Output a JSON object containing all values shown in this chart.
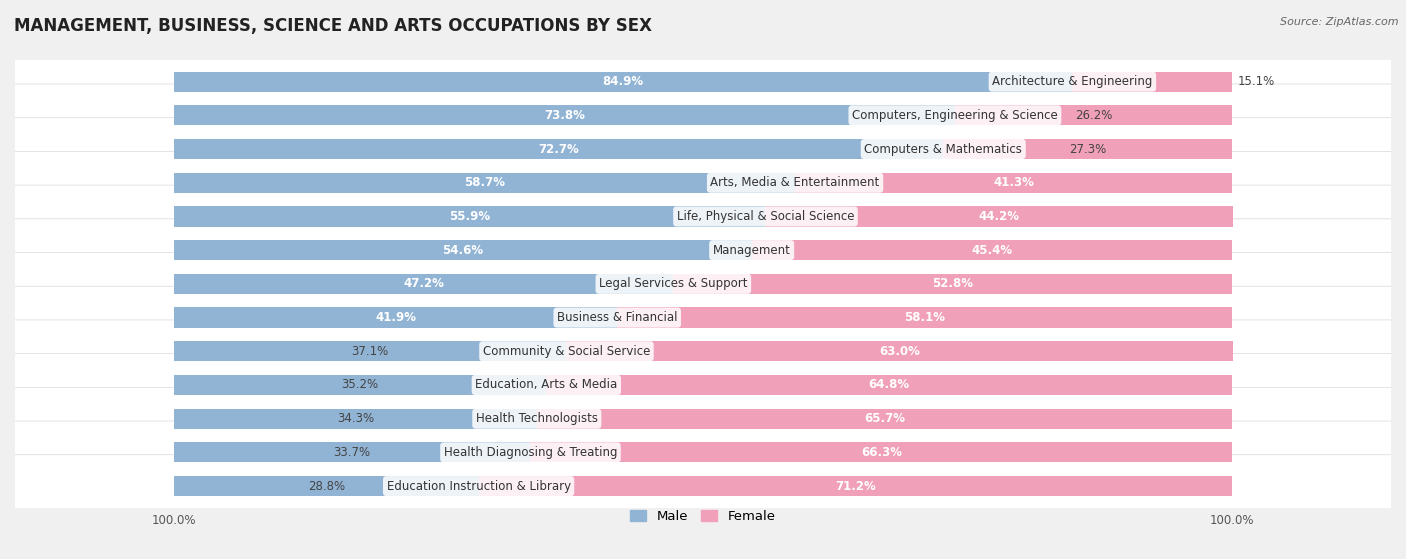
{
  "title": "MANAGEMENT, BUSINESS, SCIENCE AND ARTS OCCUPATIONS BY SEX",
  "source": "Source: ZipAtlas.com",
  "categories": [
    "Architecture & Engineering",
    "Computers, Engineering & Science",
    "Computers & Mathematics",
    "Arts, Media & Entertainment",
    "Life, Physical & Social Science",
    "Management",
    "Legal Services & Support",
    "Business & Financial",
    "Community & Social Service",
    "Education, Arts & Media",
    "Health Technologists",
    "Health Diagnosing & Treating",
    "Education Instruction & Library"
  ],
  "male_pct": [
    84.9,
    73.8,
    72.7,
    58.7,
    55.9,
    54.6,
    47.2,
    41.9,
    37.1,
    35.2,
    34.3,
    33.7,
    28.8
  ],
  "female_pct": [
    15.1,
    26.2,
    27.3,
    41.3,
    44.2,
    45.4,
    52.8,
    58.1,
    63.0,
    64.8,
    65.7,
    66.3,
    71.2
  ],
  "male_color": "#92b4d4",
  "female_color": "#f0a0b8",
  "background_color": "#f0f0f0",
  "row_bg_color": "#ffffff",
  "row_border_color": "#d8d8d8",
  "title_fontsize": 12,
  "label_fontsize": 8.5,
  "tick_fontsize": 8.5,
  "legend_fontsize": 9.5,
  "male_inside_thresh": 15,
  "female_inside_thresh": 20
}
